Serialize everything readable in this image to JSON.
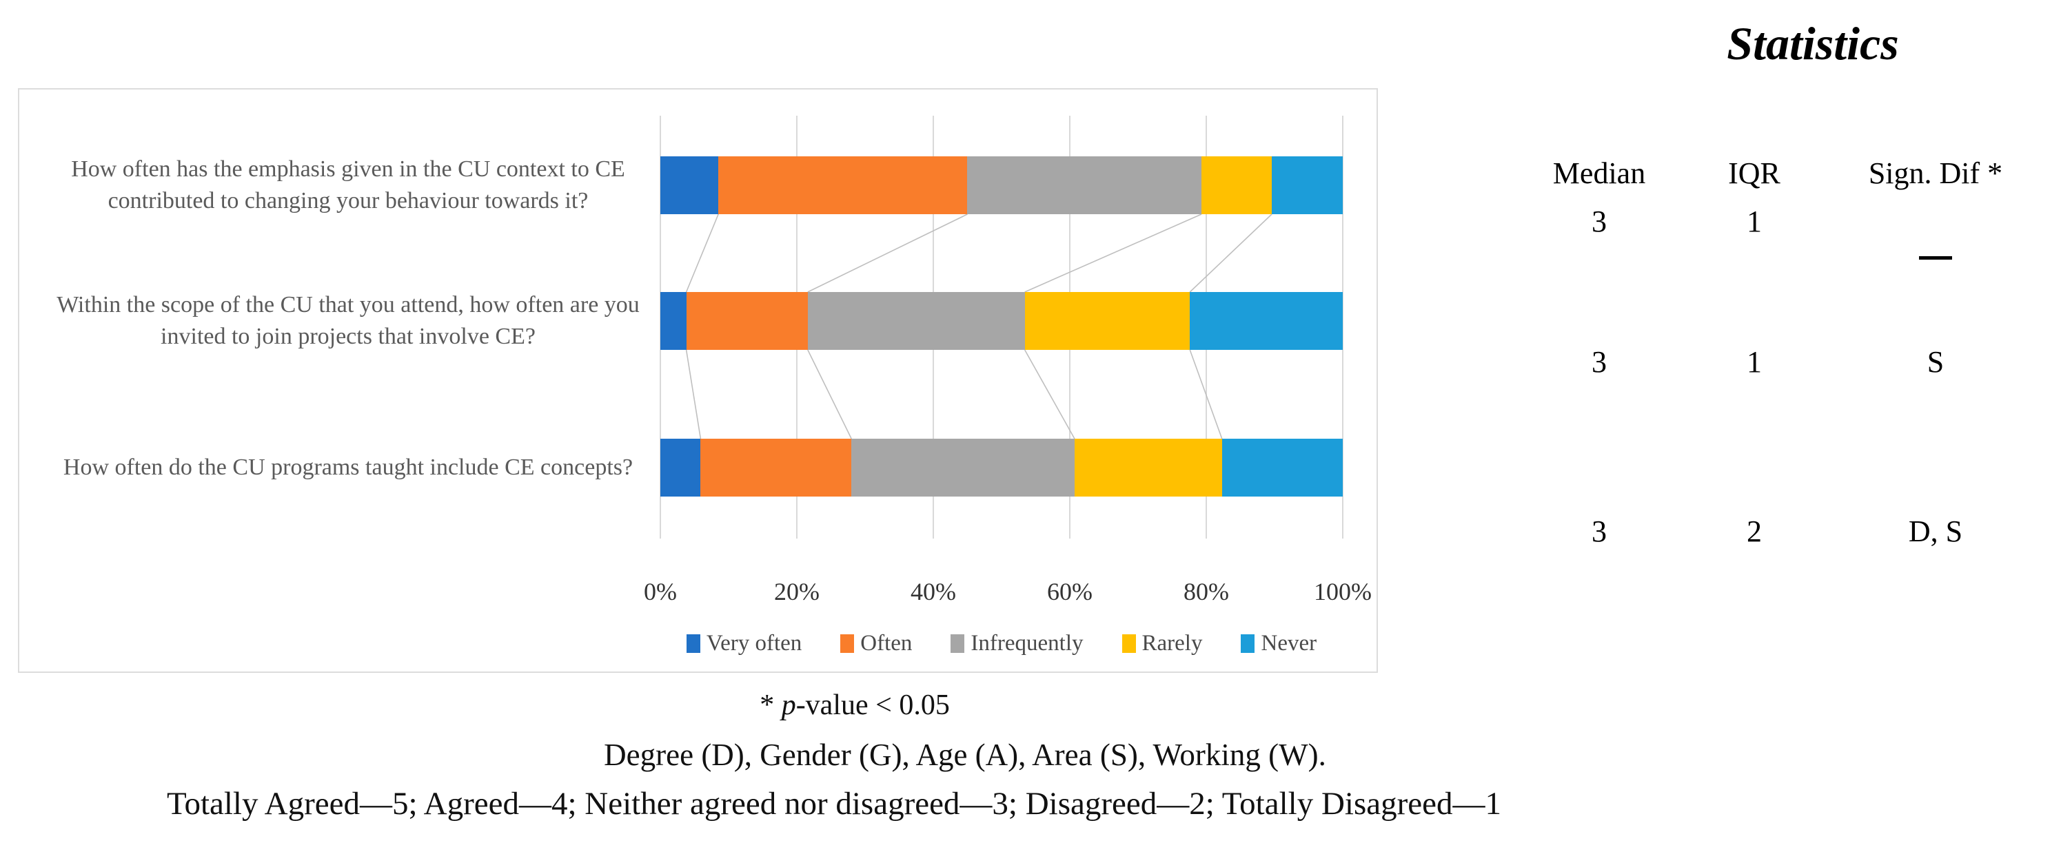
{
  "chart_data": {
    "type": "bar",
    "stacked": true,
    "orientation": "horizontal",
    "unit": "percent",
    "categories": [
      "How often has the emphasis given in the CU context to CE contributed to changing your behaviour towards it?",
      "Within the scope of the CU that you attend, how often are you invited to join projects that involve CE?",
      "How often do the CU programs taught include CE concepts?"
    ],
    "series": [
      {
        "name": "Very often",
        "color": "#2071C7",
        "values": [
          8.5,
          3.8,
          5.9
        ]
      },
      {
        "name": "Often",
        "color": "#F97D2B",
        "values": [
          36.5,
          17.8,
          22.1
        ]
      },
      {
        "name": "Infrequently",
        "color": "#A6A6A6",
        "values": [
          34.3,
          31.8,
          32.7
        ]
      },
      {
        "name": "Rarely",
        "color": "#FFC000",
        "values": [
          10.3,
          24.2,
          21.6
        ]
      },
      {
        "name": "Never",
        "color": "#1C9DD9",
        "values": [
          10.4,
          22.4,
          17.7
        ]
      }
    ],
    "x_ticks": [
      "0%",
      "20%",
      "40%",
      "60%",
      "80%",
      "100%"
    ],
    "xlim": [
      0,
      100
    ],
    "grid": true,
    "legend_position": "bottom",
    "connector_lines": true,
    "gridline_color": "#D9D9D9",
    "connector_color": "#BFBFBF"
  },
  "statistics": {
    "title": "Statistics",
    "columns": [
      "Median",
      "IQR",
      "Sign. Dif *"
    ],
    "rows": [
      {
        "median": "3",
        "iqr": "1",
        "sig": "—"
      },
      {
        "median": "3",
        "iqr": "1",
        "sig": "S"
      },
      {
        "median": "3",
        "iqr": "2",
        "sig": "D, S"
      }
    ]
  },
  "footnotes": {
    "pvalue_star": "* ",
    "pvalue_p": "p",
    "pvalue_rest": "-value < 0.05",
    "legend_keys": "Degree (D), Gender (G), Age (A), Area (S), Working (W).",
    "scale": "Totally Agreed—5; Agreed—4; Neither agreed nor disagreed—3; Disagreed—2; Totally Disagreed—1"
  }
}
